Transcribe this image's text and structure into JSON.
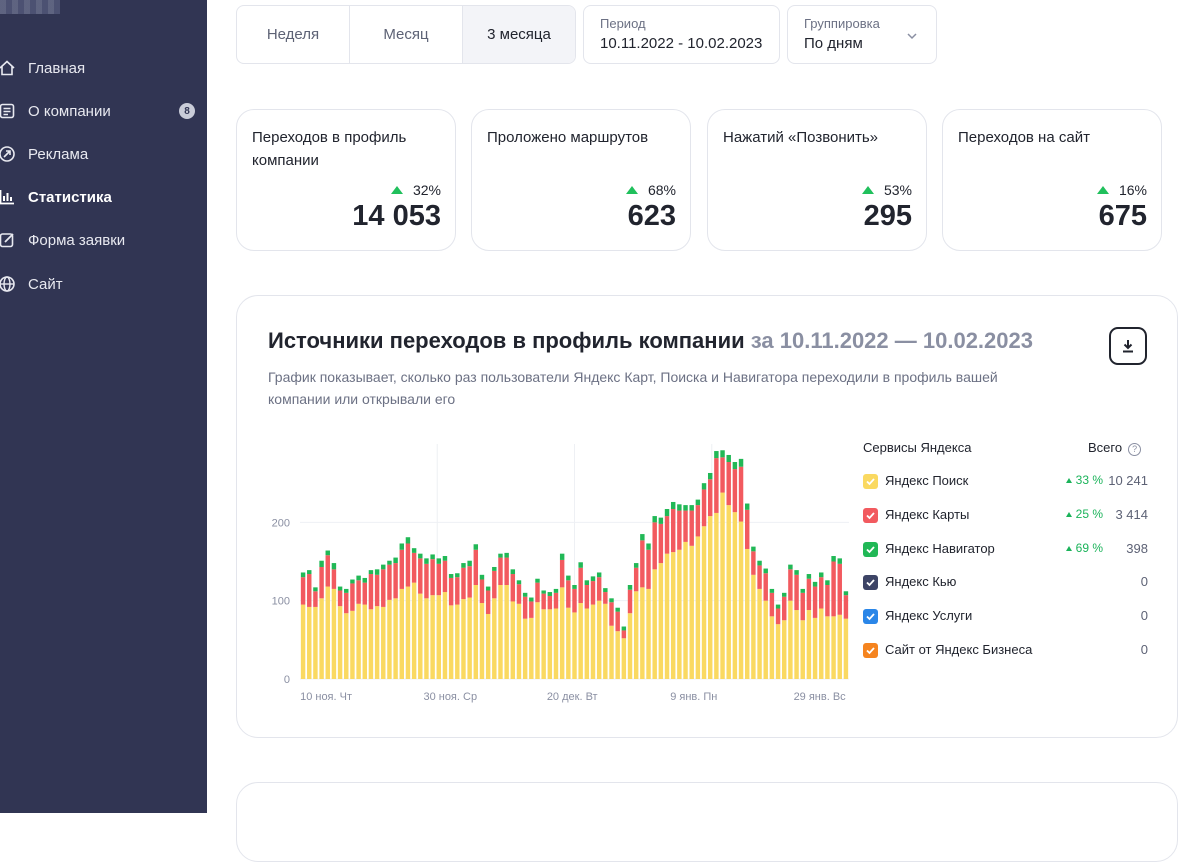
{
  "sidebar": {
    "items": [
      {
        "label": "Главная",
        "icon": "home-icon"
      },
      {
        "label": "О компании",
        "icon": "document-icon",
        "badge": "8"
      },
      {
        "label": "Реклама",
        "icon": "compass-icon"
      },
      {
        "label": "Статистика",
        "icon": "bar-chart-icon",
        "active": true
      },
      {
        "label": "Форма заявки",
        "icon": "edit-icon"
      },
      {
        "label": "Сайт",
        "icon": "globe-icon"
      }
    ]
  },
  "filters": {
    "tabs": [
      "Неделя",
      "Месяц",
      "3 месяца"
    ],
    "selected_tab": "3 месяца",
    "period_label": "Период",
    "period_value": "10.11.2022 - 10.02.2023",
    "grouping_label": "Группировка",
    "grouping_value": "По дням"
  },
  "cards": [
    {
      "title": "Переходов в профиль компании",
      "delta": "32%",
      "value": "14 053"
    },
    {
      "title": "Проложено маршрутов",
      "delta": "68%",
      "value": "623"
    },
    {
      "title": "Нажатий «Позвонить»",
      "delta": "53%",
      "value": "295"
    },
    {
      "title": "Переходов на сайт",
      "delta": "16%",
      "value": "675"
    }
  ],
  "panel": {
    "title": "Источники переходов в профиль компании",
    "title_dates": "за 10.11.2022 — 10.02.2023",
    "description": "График показывает, сколько раз пользователи Яндекс Карт, Поиска и Навигатора переходили в профиль вашей компании или открывали его",
    "legend_header": "Сервисы Яндекса",
    "total_header": "Всего",
    "help_symbol": "?",
    "legend": [
      {
        "name": "Яндекс Поиск",
        "color": "#fad961",
        "delta": "33 %",
        "total": "10 241"
      },
      {
        "name": "Яндекс Карты",
        "color": "#f25a5f",
        "delta": "25 %",
        "total": "3 414"
      },
      {
        "name": "Яндекс Навигатор",
        "color": "#21b856",
        "delta": "69 %",
        "total": "398"
      },
      {
        "name": "Яндекс Кью",
        "color": "#3d4466",
        "delta": "",
        "total": "0"
      },
      {
        "name": "Яндекс Услуги",
        "color": "#2a86e8",
        "delta": "",
        "total": "0"
      },
      {
        "name": "Сайт от Яндекс Бизнеса",
        "color": "#f5841f",
        "delta": "",
        "total": "0"
      }
    ]
  },
  "chart_data": {
    "type": "bar",
    "stacked": true,
    "yticks": [
      0,
      100,
      200
    ],
    "ylim": [
      0,
      300
    ],
    "xtick_labels": [
      {
        "index": 0,
        "label": "10 ноя. Чт"
      },
      {
        "index": 20,
        "label": "30 ноя. Ср"
      },
      {
        "index": 40,
        "label": "20 дек. Вт"
      },
      {
        "index": 60,
        "label": "9 янв. Пн"
      },
      {
        "index": 80,
        "label": "29 янв. Вс"
      }
    ],
    "series": [
      {
        "name": "Яндекс Поиск",
        "color": "#fad961",
        "values": [
          95,
          92,
          92,
          103,
          118,
          115,
          93,
          84,
          87,
          96,
          95,
          89,
          93,
          92,
          101,
          103,
          115,
          118,
          123,
          109,
          103,
          107,
          107,
          111,
          94,
          95,
          102,
          104,
          120,
          97,
          83,
          103,
          120,
          120,
          99,
          96,
          77,
          78,
          98,
          89,
          89,
          90,
          117,
          91,
          85,
          97,
          90,
          95,
          100,
          96,
          68,
          61,
          52,
          84,
          112,
          117,
          115,
          140,
          148,
          160,
          162,
          165,
          175,
          170,
          182,
          195,
          208,
          212,
          238,
          222,
          213,
          201,
          166,
          133,
          115,
          100,
          80,
          70,
          75,
          100,
          88,
          75,
          88,
          78,
          90,
          80,
          80,
          82,
          77
        ]
      },
      {
        "name": "Яндекс Карты",
        "color": "#f25a5f",
        "values": [
          35,
          42,
          20,
          40,
          40,
          25,
          20,
          26,
          35,
          30,
          28,
          45,
          40,
          48,
          45,
          45,
          50,
          55,
          38,
          45,
          44,
          46,
          40,
          40,
          35,
          35,
          40,
          40,
          45,
          30,
          30,
          35,
          35,
          35,
          35,
          25,
          28,
          21,
          25,
          20,
          17,
          20,
          35,
          35,
          30,
          45,
          30,
          30,
          30,
          15,
          30,
          25,
          10,
          30,
          30,
          60,
          50,
          60,
          50,
          48,
          55,
          50,
          40,
          45,
          40,
          47,
          47,
          70,
          45,
          55,
          55,
          70,
          50,
          30,
          30,
          35,
          30,
          20,
          30,
          40,
          45,
          35,
          40,
          40,
          40,
          40,
          70,
          65,
          30
        ]
      },
      {
        "name": "Яндекс Навигатор",
        "color": "#21b856",
        "values": [
          6,
          5,
          5,
          8,
          6,
          8,
          5,
          5,
          5,
          6,
          6,
          5,
          7,
          6,
          5,
          7,
          8,
          8,
          6,
          6,
          7,
          6,
          7,
          6,
          5,
          5,
          6,
          7,
          7,
          6,
          5,
          5,
          5,
          6,
          6,
          5,
          5,
          5,
          5,
          4,
          5,
          5,
          8,
          6,
          5,
          7,
          6,
          6,
          6,
          5,
          5,
          5,
          5,
          6,
          6,
          8,
          8,
          8,
          8,
          9,
          9,
          8,
          7,
          7,
          7,
          8,
          8,
          9,
          9,
          9,
          9,
          10,
          8,
          6,
          6,
          6,
          5,
          5,
          5,
          6,
          6,
          5,
          6,
          6,
          6,
          6,
          7,
          7,
          5
        ]
      }
    ]
  }
}
